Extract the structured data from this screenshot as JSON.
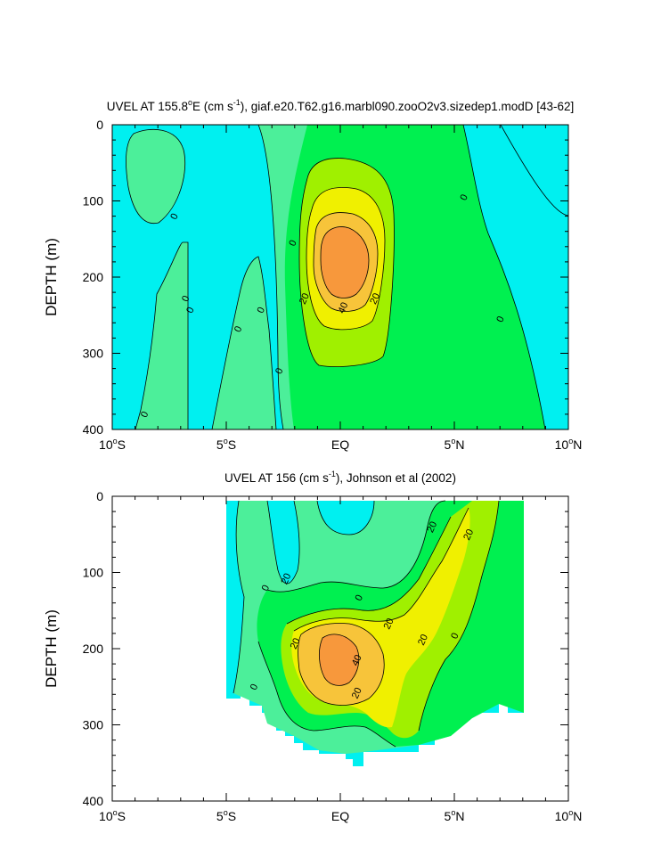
{
  "colors": {
    "c_neg": "#00F0F0",
    "c_0": "#4CEF9A",
    "c_10": "#00F050",
    "c_20": "#A0F000",
    "c_30": "#F0F000",
    "c_40": "#F7C43A",
    "c_50": "#F7983C",
    "contour_line": "#000000",
    "axis": "#000000"
  },
  "chart_data": [
    {
      "type": "heatmap",
      "title": "UVEL AT 155.8ºE (cm s-1), giaf.e20.T62.g16.marbl090.zooO2v3.sizedep1.modD [43-62]",
      "title_parts": {
        "pre": "UVEL AT 155.8",
        "deg": "o",
        "post": "E (cm s",
        "sup": "-1",
        "tail": "), giaf.e20.T62.g16.marbl090.zooO2v3.sizedep1.modD [43-62]"
      },
      "ylabel": "DEPTH (m)",
      "xlim": [
        -10,
        10
      ],
      "ylim": [
        0,
        400
      ],
      "y_reversed": true,
      "x_ticks": [
        {
          "value": -10,
          "num": "10",
          "deg": "o",
          "hem": "S"
        },
        {
          "value": -5,
          "num": "5",
          "deg": "o",
          "hem": "S"
        },
        {
          "value": 0,
          "num": "EQ",
          "deg": "",
          "hem": ""
        },
        {
          "value": 5,
          "num": "5",
          "deg": "o",
          "hem": "N"
        },
        {
          "value": 10,
          "num": "10",
          "deg": "o",
          "hem": "N"
        }
      ],
      "y_ticks": [
        "0",
        "100",
        "200",
        "300",
        "400"
      ],
      "contour_levels": [
        0,
        10,
        20,
        30,
        40,
        50
      ],
      "contour_labels": [
        {
          "text": "0",
          "lon": -7.3,
          "depth": 120
        },
        {
          "text": "0",
          "lon": -6.8,
          "depth": 228
        },
        {
          "text": "0",
          "lon": -6.6,
          "depth": 243
        },
        {
          "text": "0",
          "lon": -8.6,
          "depth": 380
        },
        {
          "text": "0",
          "lon": -4.5,
          "depth": 268
        },
        {
          "text": "0",
          "lon": -3.5,
          "depth": 243
        },
        {
          "text": "0",
          "lon": -2.7,
          "depth": 323
        },
        {
          "text": "0",
          "lon": -2.1,
          "depth": 155
        },
        {
          "text": "0",
          "lon": 5.4,
          "depth": 95
        },
        {
          "text": "0",
          "lon": 7.0,
          "depth": 255
        },
        {
          "text": "20",
          "lon": -1.6,
          "depth": 228
        },
        {
          "text": "40",
          "lon": 0.1,
          "depth": 240
        },
        {
          "text": "20",
          "lon": 1.5,
          "depth": 228
        }
      ]
    },
    {
      "type": "heatmap",
      "title": "UVEL AT 156 (cm s-1), Johnson et al (2002)",
      "title_parts": {
        "pre": "UVEL AT 156 (cm s",
        "sup": "-1",
        "tail": "), Johnson et al (2002)"
      },
      "ylabel": "DEPTH (m)",
      "xlim": [
        -10,
        10
      ],
      "ylim": [
        0,
        400
      ],
      "y_reversed": true,
      "data_extent": [
        -5,
        8
      ],
      "x_ticks": [
        {
          "value": -10,
          "num": "10",
          "deg": "o",
          "hem": "S"
        },
        {
          "value": -5,
          "num": "5",
          "deg": "o",
          "hem": "S"
        },
        {
          "value": 0,
          "num": "EQ",
          "deg": "",
          "hem": ""
        },
        {
          "value": 5,
          "num": "5",
          "deg": "o",
          "hem": "N"
        },
        {
          "value": 10,
          "num": "10",
          "deg": "o",
          "hem": "N"
        }
      ],
      "y_ticks": [
        "0",
        "100",
        "200",
        "300",
        "400"
      ],
      "contour_levels": [
        0,
        10,
        20,
        30,
        40
      ],
      "contour_labels": [
        {
          "text": "20",
          "lon": 4.0,
          "depth": 40
        },
        {
          "text": "20",
          "lon": 5.6,
          "depth": 50
        },
        {
          "text": "20",
          "lon": -2.4,
          "depth": 108
        },
        {
          "text": "0",
          "lon": -3.3,
          "depth": 120
        },
        {
          "text": "0",
          "lon": 0.8,
          "depth": 133
        },
        {
          "text": "20",
          "lon": 2.1,
          "depth": 167
        },
        {
          "text": "20",
          "lon": -2.0,
          "depth": 193
        },
        {
          "text": "40",
          "lon": 0.7,
          "depth": 215
        },
        {
          "text": "20",
          "lon": 3.6,
          "depth": 188
        },
        {
          "text": "0",
          "lon": 5.0,
          "depth": 183
        },
        {
          "text": "0",
          "lon": -3.8,
          "depth": 250
        },
        {
          "text": "20",
          "lon": 0.7,
          "depth": 258
        }
      ]
    }
  ]
}
